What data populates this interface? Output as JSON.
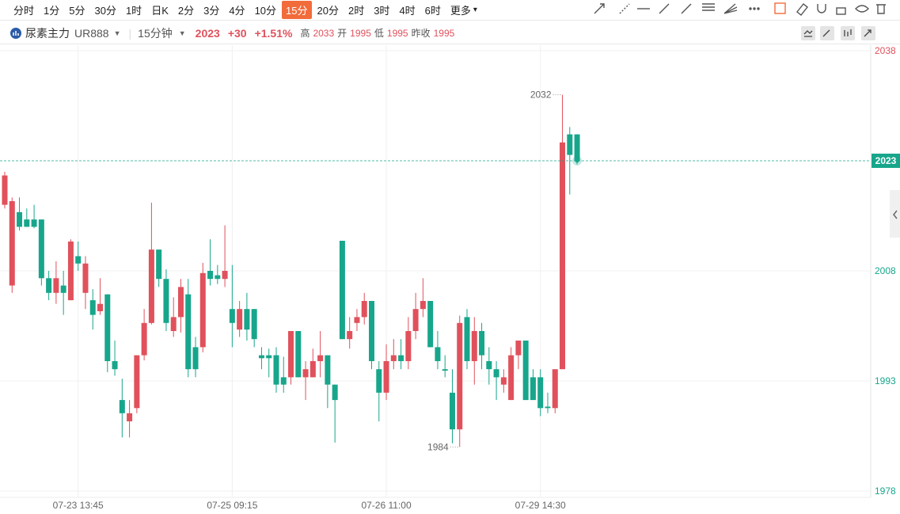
{
  "toolbar": {
    "intervals": [
      "分时",
      "1分",
      "5分",
      "30分",
      "1时",
      "日K",
      "2分",
      "3分",
      "4分",
      "10分",
      "15分",
      "20分",
      "2时",
      "3时",
      "4时",
      "6时",
      "更多"
    ],
    "selected": 10
  },
  "header": {
    "name": "尿素主力",
    "code": "UR888",
    "period": "15分钟",
    "price": "2023",
    "change": "+30",
    "percent": "+1.51%",
    "stats": [
      {
        "label": "高",
        "value": "2033"
      },
      {
        "label": "开",
        "value": "1995"
      },
      {
        "label": "低",
        "value": "1995"
      },
      {
        "label": "昨收",
        "value": "1995"
      }
    ]
  },
  "chart_data": {
    "type": "candlestick",
    "categories": [
      null,
      null,
      null,
      null,
      null,
      null,
      null,
      null,
      null,
      null,
      "07-23 13:45",
      null,
      null,
      null,
      null,
      null,
      null,
      null,
      null,
      null,
      null,
      null,
      null,
      null,
      null,
      null,
      null,
      null,
      null,
      null,
      null,
      "07-25 09:15",
      null,
      null,
      null,
      null,
      null,
      null,
      null,
      null,
      null,
      null,
      null,
      null,
      null,
      null,
      null,
      null,
      null,
      null,
      null,
      null,
      "07-26 11:00",
      null,
      null,
      null,
      null,
      null,
      null,
      null,
      null,
      null,
      null,
      null,
      null,
      null,
      null,
      null,
      null,
      null,
      null,
      null,
      null,
      "07-29 14:30",
      null,
      null,
      null,
      null,
      null
    ],
    "open": [
      2017,
      2006,
      2016,
      2015,
      2015,
      2015,
      2007,
      2005,
      2006,
      2004,
      2010,
      2005,
      2004,
      2002.5,
      2004.8,
      1995.7,
      1990.4,
      1987.5,
      1989.3,
      1996.5,
      2000.9,
      2010.9,
      2006.9,
      1999.8,
      2001.7,
      2004.8,
      1997.6,
      1997.6,
      2008,
      2007.4,
      2006.9,
      2002.8,
      2000,
      2002.8,
      2002.8,
      1996.5,
      1996.5,
      1996.5,
      1993.5,
      1993.5,
      1999.8,
      1993.5,
      1993.5,
      1995.7,
      1996.5,
      1992.5,
      2012.1,
      1998.7,
      2000.9,
      2001.7,
      2003.9,
      1994.6,
      1991.4,
      1995.7,
      1996.5,
      1995.7,
      1999.8,
      2002.8,
      2003.9,
      1997.6,
      1994.6,
      1991.4,
      1986.4,
      2001.7,
      1995.7,
      1999.8,
      1995.7,
      1994.6,
      1992.5,
      1990.4,
      1996.5,
      1998.5,
      1993.5,
      1993.5,
      1989.5,
      1989.3,
      1994.6,
      2026.6,
      2026.6
    ],
    "high": [
      2021.5,
      2018,
      2018,
      2016.5,
      2017,
      2015,
      2008,
      2009.3,
      2008,
      2012.3,
      2012,
      2010,
      2005.5,
      2007,
      2004.8,
      1998.5,
      1993.3,
      1990.4,
      1996.5,
      2002.8,
      2017.3,
      2010.9,
      2008.2,
      2004.4,
      2006.9,
      2006.9,
      1999,
      2009.1,
      2012.3,
      2008.8,
      2014.2,
      2008.8,
      2003.9,
      2005,
      2002.8,
      1997.6,
      1997.4,
      1997.6,
      1996.3,
      1999.8,
      1999.8,
      1995.7,
      1997.4,
      1999.8,
      1996.5,
      1992.5,
      2012.1,
      2001.7,
      2002.8,
      2005,
      2003.9,
      1995.7,
      1998,
      1998.7,
      1998.7,
      2001.7,
      2005,
      2007,
      2003.9,
      1999.8,
      1996.5,
      1994.6,
      2001.9,
      2002.8,
      2001.7,
      2000.9,
      1997.6,
      1995.7,
      1994.6,
      1997.6,
      1998.5,
      1998.5,
      1994.6,
      1994.6,
      1991.4,
      1994.6,
      2032,
      2027.6,
      2026.6
    ],
    "low": [
      2016.5,
      2005,
      2013.5,
      2014,
      2013.8,
      2006,
      2004,
      2003.5,
      2002,
      2004,
      2008,
      2002.8,
      2000,
      2002,
      1994.2,
      1993.7,
      1985.3,
      1985.3,
      1988.6,
      1995.8,
      2000.7,
      2005.8,
      1999.8,
      1999,
      1999.6,
      1993.5,
      1993.5,
      1996.9,
      2006,
      2006.2,
      2005.8,
      1997.6,
      1999,
      1998.5,
      1997.6,
      1994.6,
      1993.5,
      1991.4,
      1991.4,
      1992.5,
      1993.5,
      1990.4,
      1993.5,
      1993.5,
      1989.3,
      1984.6,
      1998.7,
      1997.4,
      1999.8,
      2000.7,
      1994.6,
      1987.5,
      1990.4,
      1994.6,
      1994.6,
      1994.6,
      1998.7,
      2001.7,
      1997.6,
      1994.6,
      1993.5,
      1984.5,
      1984,
      1994.6,
      1992.5,
      1994.6,
      1992.5,
      1990.4,
      1991.4,
      1990.4,
      1994.6,
      1990.4,
      1990.4,
      1988.2,
      1988.6,
      1988.6,
      1994.6,
      2018.4,
      2022.5
    ],
    "close": [
      2021,
      2017.5,
      2014,
      2014,
      2014,
      2007,
      2005,
      2007,
      2005,
      2012,
      2009,
      2009,
      2002,
      2003.5,
      1995.7,
      1994.6,
      1988.6,
      1988.6,
      1996.5,
      2000.9,
      2010.9,
      2006.9,
      2000.9,
      2001.7,
      2005.8,
      1994.6,
      1994.6,
      2007.7,
      2006.9,
      2006.9,
      2008,
      2000.9,
      2002.8,
      2000,
      1998.7,
      1996.1,
      1996.1,
      1992.5,
      1992.5,
      1999.8,
      1993.5,
      1994.6,
      1995.7,
      1996.5,
      1992.5,
      1990.4,
      1998.7,
      1999.8,
      2001.7,
      2003.9,
      1995.7,
      1991.4,
      1995.7,
      1996.5,
      1995.7,
      1999.8,
      2002.8,
      2003.9,
      1997.6,
      1995.7,
      1994.4,
      1986.4,
      2000.9,
      1995.7,
      1999.8,
      1996.5,
      1994.6,
      1993.5,
      1993.5,
      1996.5,
      1998.5,
      1990.4,
      1990.4,
      1989.3,
      1989.3,
      1994.6,
      2025.5,
      2023.8,
      2023
    ],
    "up_color": "#e0515c",
    "down_color": "#17a68b",
    "ylim": [
      1978,
      2038
    ],
    "yticks": [
      1978,
      1993,
      2008,
      2038
    ],
    "last_price": 2023,
    "high_label_index": 76,
    "low_label_index": 62,
    "grid": true
  }
}
